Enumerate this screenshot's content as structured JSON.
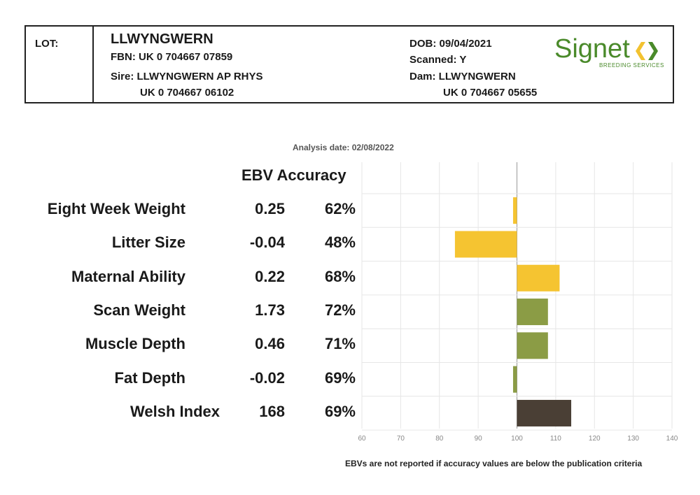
{
  "header": {
    "lot_label": "LOT:",
    "name": "LLWYNGWERN",
    "fbn": "FBN: UK 0 704667 07859",
    "sire": "Sire: LLWYNGWERN AP RHYS",
    "sire_id": "UK 0 704667 06102",
    "dob": "DOB: 09/04/2021",
    "scanned": "Scanned: Y",
    "dam": "Dam: LLWYNGWERN",
    "dam_id": "UK 0 704667 05655",
    "logo_text": "Signet",
    "logo_subtext": "BREEDING SERVICES",
    "logo_color": "#4a8a2a",
    "logo_arrow_left_color": "#f2c230",
    "logo_arrow_right_color": "#4a8a2a"
  },
  "analysis_date": "Analysis date: 02/08/2022",
  "columns": {
    "ebv_accuracy": "EBV Accuracy"
  },
  "footnote": "EBVs are not reported if accuracy values are below the publication criteria",
  "chart_data": {
    "type": "bar",
    "orientation": "horizontal",
    "baseline": 100,
    "xlim": [
      60,
      140
    ],
    "x_ticks": [
      "60",
      "70",
      "80",
      "90",
      "100",
      "110",
      "120",
      "130",
      "140"
    ],
    "grid": true,
    "categories": [
      "Eight Week Weight",
      "Litter Size",
      "Maternal Ability",
      "Scan Weight",
      "Muscle Depth",
      "Fat Depth",
      "Welsh Index"
    ],
    "ebv": [
      "0.25",
      "-0.04",
      "0.22",
      "1.73",
      "0.46",
      "-0.02",
      "168"
    ],
    "accuracy": [
      "62%",
      "48%",
      "68%",
      "72%",
      "71%",
      "69%",
      "69%"
    ],
    "values": [
      99,
      84,
      111,
      108,
      108,
      99,
      114
    ],
    "colors": [
      "#f5c431",
      "#f5c431",
      "#f5c431",
      "#8b9c45",
      "#8b9c45",
      "#8b9c45",
      "#4a3f35"
    ]
  }
}
